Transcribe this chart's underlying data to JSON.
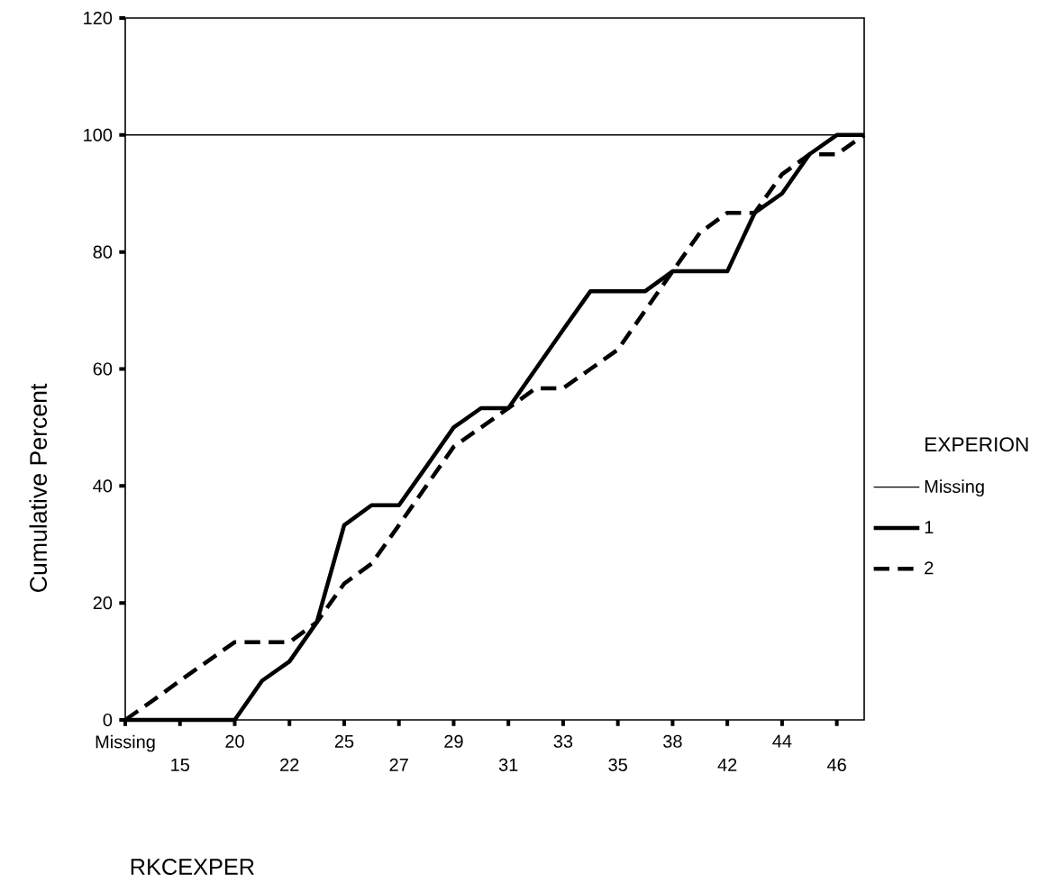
{
  "chart_data": {
    "type": "line",
    "xlabel": "RKCEXPER",
    "ylabel": "Cumulative Percent",
    "legend_title": "EXPERION",
    "legend": "right",
    "categories": [
      "Missing",
      null,
      "15",
      null,
      "20",
      null,
      "22",
      null,
      "25",
      null,
      "27",
      null,
      "29",
      null,
      "31",
      null,
      "33",
      null,
      "35",
      null,
      "38",
      null,
      "42",
      null,
      "44",
      null,
      "46",
      null
    ],
    "ylim": [
      0,
      120
    ],
    "yticks": [
      0,
      20,
      40,
      60,
      80,
      100,
      120
    ],
    "series": [
      {
        "name": "Missing",
        "color": "#000000",
        "line_style": "solid",
        "values": [
          100,
          100,
          100,
          100,
          100,
          100,
          100,
          100,
          100,
          100,
          100,
          100,
          100,
          100,
          100,
          100,
          100,
          100,
          100,
          100,
          100,
          100,
          100,
          100,
          100,
          100,
          100,
          100
        ]
      },
      {
        "name": "1",
        "color": "#000000",
        "line_style": "solid",
        "values": [
          0,
          0,
          0,
          0,
          0,
          6.7,
          10,
          16.7,
          33.3,
          36.7,
          36.7,
          43.3,
          50,
          53.3,
          53.3,
          60,
          66.7,
          73.3,
          73.3,
          73.3,
          76.7,
          76.7,
          76.7,
          86.7,
          90,
          96.7,
          100,
          100
        ]
      },
      {
        "name": "2",
        "color": "#000000",
        "line_style": "dashed",
        "values": [
          0,
          3.3,
          6.7,
          10,
          13.3,
          13.3,
          13.3,
          16.7,
          23.3,
          26.7,
          33.3,
          40,
          46.7,
          50,
          53.3,
          56.7,
          56.7,
          60,
          63.3,
          70,
          76.7,
          83.3,
          86.7,
          86.7,
          93.3,
          96.7,
          96.7,
          100
        ]
      }
    ]
  }
}
